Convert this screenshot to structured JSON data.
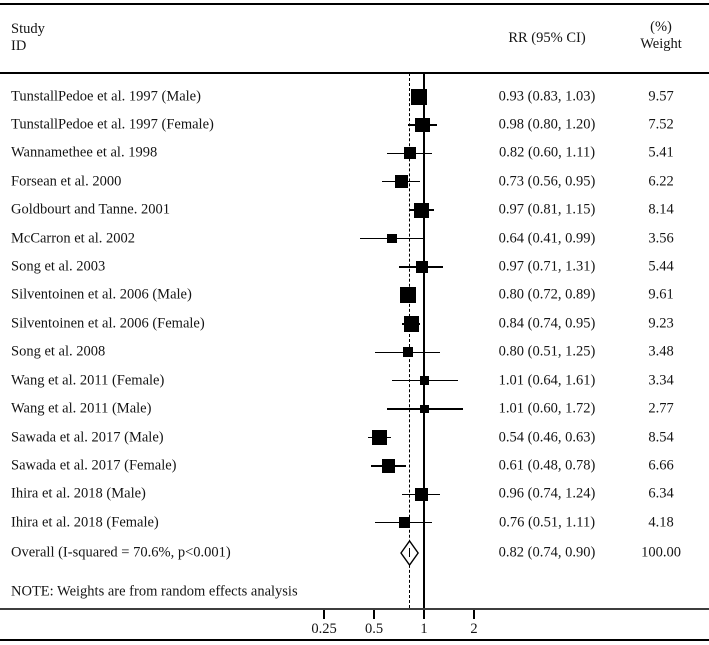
{
  "header": {
    "study_line1": "Study",
    "study_line2": "ID",
    "rr_col": "RR (95% CI)",
    "weight_line1": "(%)",
    "weight_line2": "Weight"
  },
  "note": "NOTE: Weights are from random effects analysis",
  "colors": {
    "ink": "#141414",
    "line": "#000000",
    "axis_line": "#3d3d3d",
    "marker_fill": "#000000",
    "diamond_fill": "#ffffff"
  },
  "chart_data": {
    "type": "forest",
    "title": "",
    "x_scale": "log",
    "x_ticks": [
      0.25,
      0.5,
      1,
      2
    ],
    "x_tick_labels": [
      "0.25",
      "0.5",
      "1",
      "2"
    ],
    "reference_line": 1,
    "overall_estimate_line": 0.82,
    "columns": [
      "Study ID",
      "RR (95% CI)",
      "(%) Weight"
    ],
    "studies": [
      {
        "label": "TunstallPedoe et al. 1997 (Male)",
        "rr": 0.93,
        "lo": 0.83,
        "hi": 1.03,
        "rr_text": "0.93 (0.83, 1.03)",
        "weight": 9.57,
        "weight_text": "9.57"
      },
      {
        "label": "TunstallPedoe et al. 1997 (Female)",
        "rr": 0.98,
        "lo": 0.8,
        "hi": 1.2,
        "rr_text": "0.98 (0.80, 1.20)",
        "weight": 7.52,
        "weight_text": "7.52"
      },
      {
        "label": "Wannamethee et al. 1998",
        "rr": 0.82,
        "lo": 0.6,
        "hi": 1.11,
        "rr_text": "0.82 (0.60, 1.11)",
        "weight": 5.41,
        "weight_text": "5.41"
      },
      {
        "label": "Forsean et al. 2000",
        "rr": 0.73,
        "lo": 0.56,
        "hi": 0.95,
        "rr_text": "0.73 (0.56, 0.95)",
        "weight": 6.22,
        "weight_text": "6.22"
      },
      {
        "label": "Goldbourt and Tanne. 2001",
        "rr": 0.97,
        "lo": 0.81,
        "hi": 1.15,
        "rr_text": "0.97 (0.81, 1.15)",
        "weight": 8.14,
        "weight_text": "8.14"
      },
      {
        "label": "McCarron et al. 2002",
        "rr": 0.64,
        "lo": 0.41,
        "hi": 0.99,
        "rr_text": "0.64 (0.41, 0.99)",
        "weight": 3.56,
        "weight_text": "3.56"
      },
      {
        "label": "Song et al. 2003",
        "rr": 0.97,
        "lo": 0.71,
        "hi": 1.31,
        "rr_text": "0.97 (0.71, 1.31)",
        "weight": 5.44,
        "weight_text": "5.44"
      },
      {
        "label": "Silventoinen et al. 2006 (Male)",
        "rr": 0.8,
        "lo": 0.72,
        "hi": 0.89,
        "rr_text": "0.80 (0.72, 0.89)",
        "weight": 9.61,
        "weight_text": "9.61"
      },
      {
        "label": "Silventoinen et al. 2006 (Female)",
        "rr": 0.84,
        "lo": 0.74,
        "hi": 0.95,
        "rr_text": "0.84 (0.74, 0.95)",
        "weight": 9.23,
        "weight_text": "9.23"
      },
      {
        "label": "Song et al. 2008",
        "rr": 0.8,
        "lo": 0.51,
        "hi": 1.25,
        "rr_text": "0.80 (0.51, 1.25)",
        "weight": 3.48,
        "weight_text": "3.48"
      },
      {
        "label": "Wang et al. 2011 (Female)",
        "rr": 1.01,
        "lo": 0.64,
        "hi": 1.61,
        "rr_text": "1.01 (0.64, 1.61)",
        "weight": 3.34,
        "weight_text": "3.34"
      },
      {
        "label": "Wang et al. 2011 (Male)",
        "rr": 1.01,
        "lo": 0.6,
        "hi": 1.72,
        "rr_text": "1.01 (0.60, 1.72)",
        "weight": 2.77,
        "weight_text": "2.77"
      },
      {
        "label": "Sawada et al. 2017 (Male)",
        "rr": 0.54,
        "lo": 0.46,
        "hi": 0.63,
        "rr_text": "0.54 (0.46, 0.63)",
        "weight": 8.54,
        "weight_text": "8.54"
      },
      {
        "label": "Sawada et al. 2017 (Female)",
        "rr": 0.61,
        "lo": 0.48,
        "hi": 0.78,
        "rr_text": "0.61 (0.48, 0.78)",
        "weight": 6.66,
        "weight_text": "6.66"
      },
      {
        "label": "Ihira et al. 2018 (Male)",
        "rr": 0.96,
        "lo": 0.74,
        "hi": 1.24,
        "rr_text": "0.96 (0.74, 1.24)",
        "weight": 6.34,
        "weight_text": "6.34"
      },
      {
        "label": "Ihira et al. 2018 (Female)",
        "rr": 0.76,
        "lo": 0.51,
        "hi": 1.11,
        "rr_text": "0.76 (0.51, 1.11)",
        "weight": 4.18,
        "weight_text": "4.18"
      }
    ],
    "overall": {
      "label": "Overall (I-squared = 70.6%, p<0.001)",
      "rr": 0.82,
      "lo": 0.74,
      "hi": 0.9,
      "rr_text": "0.82 (0.74, 0.90)",
      "weight_text": "100.00"
    }
  }
}
